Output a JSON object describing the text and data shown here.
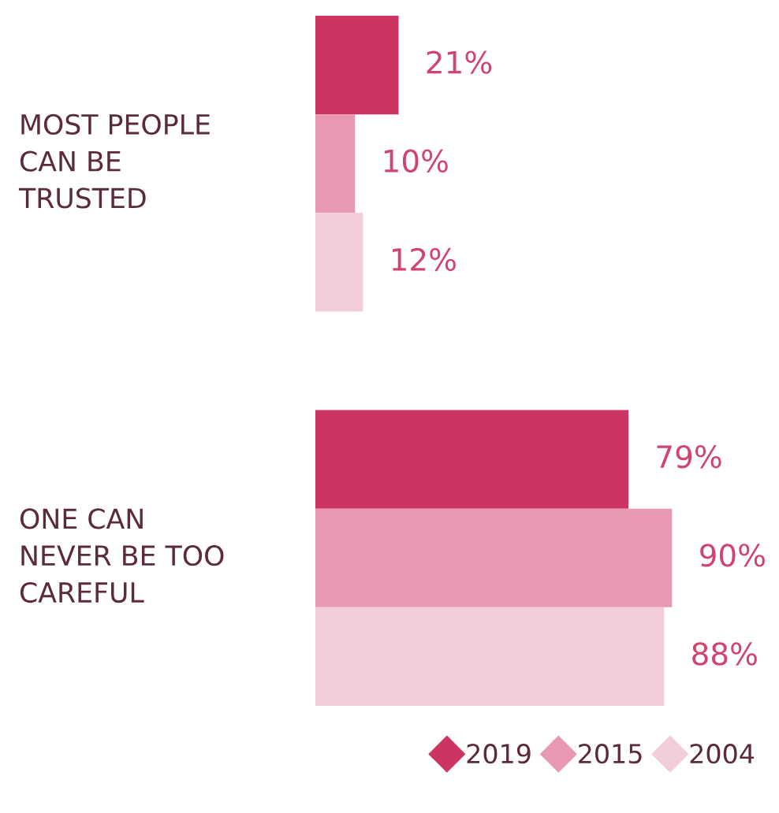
{
  "chart_data": {
    "type": "bar",
    "orientation": "horizontal",
    "categories": [
      "MOST PEOPLE\nCAN BE\nTRUSTED",
      "ONE CAN\nNEVER BE TOO\nCAREFUL"
    ],
    "series": [
      {
        "name": "2019",
        "color": "#cc3462",
        "values": [
          21,
          79
        ],
        "value_labels": [
          "21%",
          "79%"
        ]
      },
      {
        "name": "2015",
        "color": "#e899b1",
        "values": [
          10,
          90
        ],
        "value_labels": [
          "10%",
          "90%"
        ]
      },
      {
        "name": "2004",
        "color": "#f2ccd8",
        "values": [
          12,
          88
        ],
        "value_labels": [
          "12%",
          "88%"
        ]
      }
    ],
    "legend": "bottom right",
    "marker": "diamond"
  }
}
